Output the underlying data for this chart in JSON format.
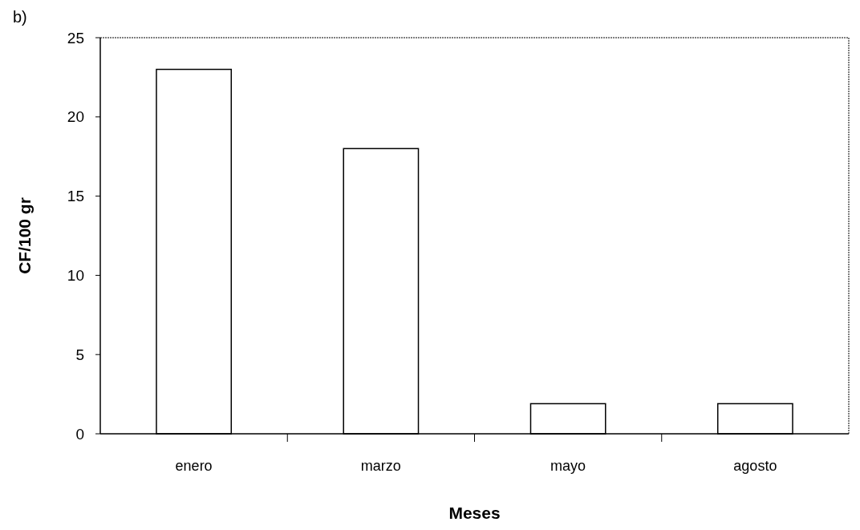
{
  "chart_data": {
    "type": "bar",
    "title": "b)",
    "xlabel": "Meses",
    "ylabel": "CF/100 gr",
    "categories": [
      "enero",
      "marzo",
      "mayo",
      "agosto"
    ],
    "values": [
      23,
      18,
      1.9,
      1.9
    ],
    "color": "#ffffff",
    "ylim": [
      0,
      25
    ],
    "yticks": [
      0,
      5,
      10,
      15,
      20,
      25
    ],
    "grid": false
  }
}
